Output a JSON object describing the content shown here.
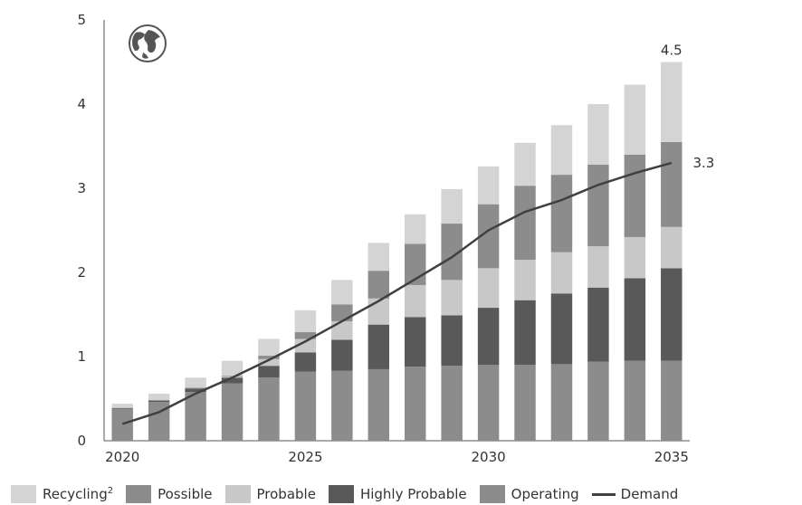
{
  "chart_data": {
    "type": "bar",
    "stacked": true,
    "categories": [
      "2020",
      "2021",
      "2022",
      "2023",
      "2024",
      "2025",
      "2026",
      "2027",
      "2028",
      "2029",
      "2030",
      "2031",
      "2032",
      "2033",
      "2034",
      "2035"
    ],
    "x_tick_labels": [
      "2020",
      "2025",
      "2030",
      "2035"
    ],
    "y_ticks": [
      "0",
      "1",
      "2",
      "3",
      "4",
      "5"
    ],
    "ylim": [
      0,
      5
    ],
    "series": [
      {
        "name": "Operating",
        "color": "#8c8c8c",
        "values": [
          0.38,
          0.46,
          0.58,
          0.68,
          0.75,
          0.82,
          0.83,
          0.85,
          0.88,
          0.89,
          0.9,
          0.9,
          0.91,
          0.94,
          0.95,
          0.95
        ]
      },
      {
        "name": "Highly Probable",
        "color": "#595959",
        "values": [
          0.01,
          0.02,
          0.04,
          0.07,
          0.14,
          0.23,
          0.37,
          0.53,
          0.59,
          0.6,
          0.68,
          0.77,
          0.84,
          0.88,
          0.98,
          1.1
        ]
      },
      {
        "name": "Probable",
        "color": "#c8c8c8",
        "values": [
          0.0,
          0.0,
          0.0,
          0.01,
          0.08,
          0.16,
          0.22,
          0.31,
          0.38,
          0.42,
          0.47,
          0.48,
          0.49,
          0.49,
          0.49,
          0.49
        ]
      },
      {
        "name": "Possible",
        "color": "#8c8c8c",
        "values": [
          0.0,
          0.0,
          0.01,
          0.01,
          0.04,
          0.08,
          0.2,
          0.33,
          0.49,
          0.67,
          0.76,
          0.88,
          0.92,
          0.97,
          0.98,
          1.01
        ]
      },
      {
        "name": "Recycling",
        "color": "#d4d4d4",
        "values": [
          0.05,
          0.08,
          0.12,
          0.18,
          0.2,
          0.26,
          0.29,
          0.33,
          0.35,
          0.41,
          0.45,
          0.51,
          0.59,
          0.72,
          0.83,
          0.95
        ]
      }
    ],
    "line": {
      "name": "Demand",
      "color": "#404040",
      "values": [
        0.2,
        0.34,
        0.56,
        0.75,
        0.96,
        1.18,
        1.42,
        1.66,
        1.92,
        2.18,
        2.5,
        2.72,
        2.86,
        3.04,
        3.18,
        3.3
      ]
    },
    "annotations": [
      {
        "text": "4.5",
        "series": "total",
        "index": 15
      },
      {
        "text": "3.3",
        "series": "Demand",
        "index": 15
      }
    ],
    "legend": {
      "placement": "bottom",
      "items": [
        {
          "label": "Recycling",
          "superscript": "2",
          "color": "#d4d4d4",
          "kind": "swatch"
        },
        {
          "label": "Possible",
          "superscript": "",
          "color": "#8c8c8c",
          "kind": "swatch"
        },
        {
          "label": "Probable",
          "superscript": "",
          "color": "#c8c8c8",
          "kind": "swatch"
        },
        {
          "label": "Highly Probable",
          "superscript": "",
          "color": "#595959",
          "kind": "swatch"
        },
        {
          "label": "Operating",
          "superscript": "",
          "color": "#8c8c8c",
          "kind": "swatch"
        },
        {
          "label": "Demand",
          "superscript": "",
          "color": "#404040",
          "kind": "line"
        }
      ]
    },
    "grid": false,
    "globe_icon": "globe-icon"
  }
}
